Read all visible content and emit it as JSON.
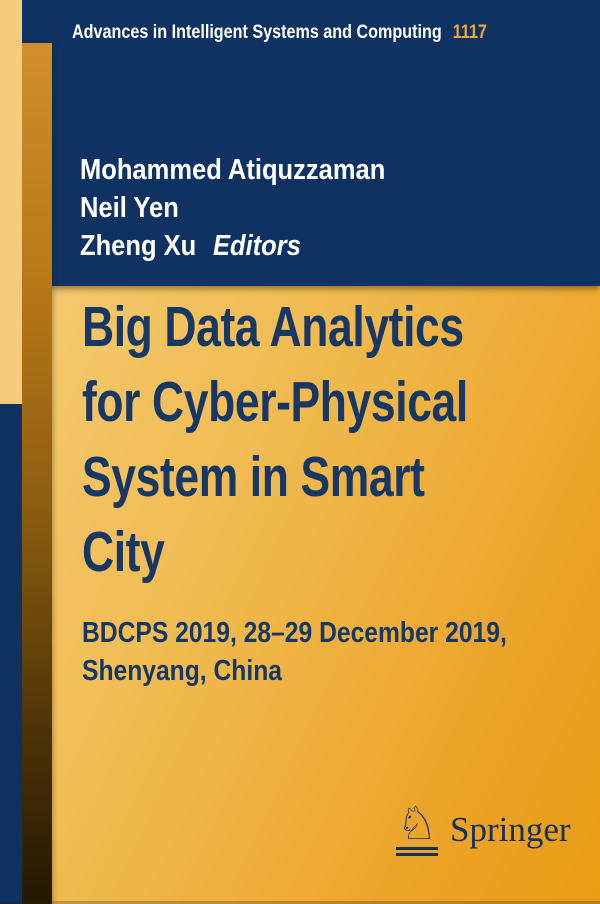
{
  "series": {
    "name": "Advances in Intelligent Systems and Computing",
    "volume": "1117"
  },
  "editors": {
    "names": [
      "Mohammed Atiquzzaman",
      "Neil Yen",
      "Zheng Xu"
    ],
    "role_label": "Editors"
  },
  "title": {
    "lines": [
      "Big Data Analytics",
      "for Cyber-Physical",
      "System in Smart",
      "City"
    ],
    "full": "Big Data Analytics for Cyber-Physical System in Smart City"
  },
  "subtitle": {
    "lines": [
      "BDCPS 2019, 28–29 December 2019,",
      "Shenyang, China"
    ],
    "full": "BDCPS 2019, 28–29 December 2019, Shenyang, China"
  },
  "publisher": {
    "name": "Springer",
    "logo_icon": "springer-knight-icon",
    "logo_glyph": "♘"
  },
  "colors": {
    "navy_panel": "#0f3263",
    "navy_strip": "#0e3161",
    "title_text": "#173864",
    "series_text": "#ffffff",
    "volume_text": "#e7a93c",
    "gold_panel_start": "#f4c96e",
    "gold_panel_end": "#e99d14",
    "left_strip_gold": "#f6cc7a",
    "orange_strip_top": "#d08e2d",
    "orange_strip_bottom": "#241803",
    "publisher_text": "#13315f"
  }
}
